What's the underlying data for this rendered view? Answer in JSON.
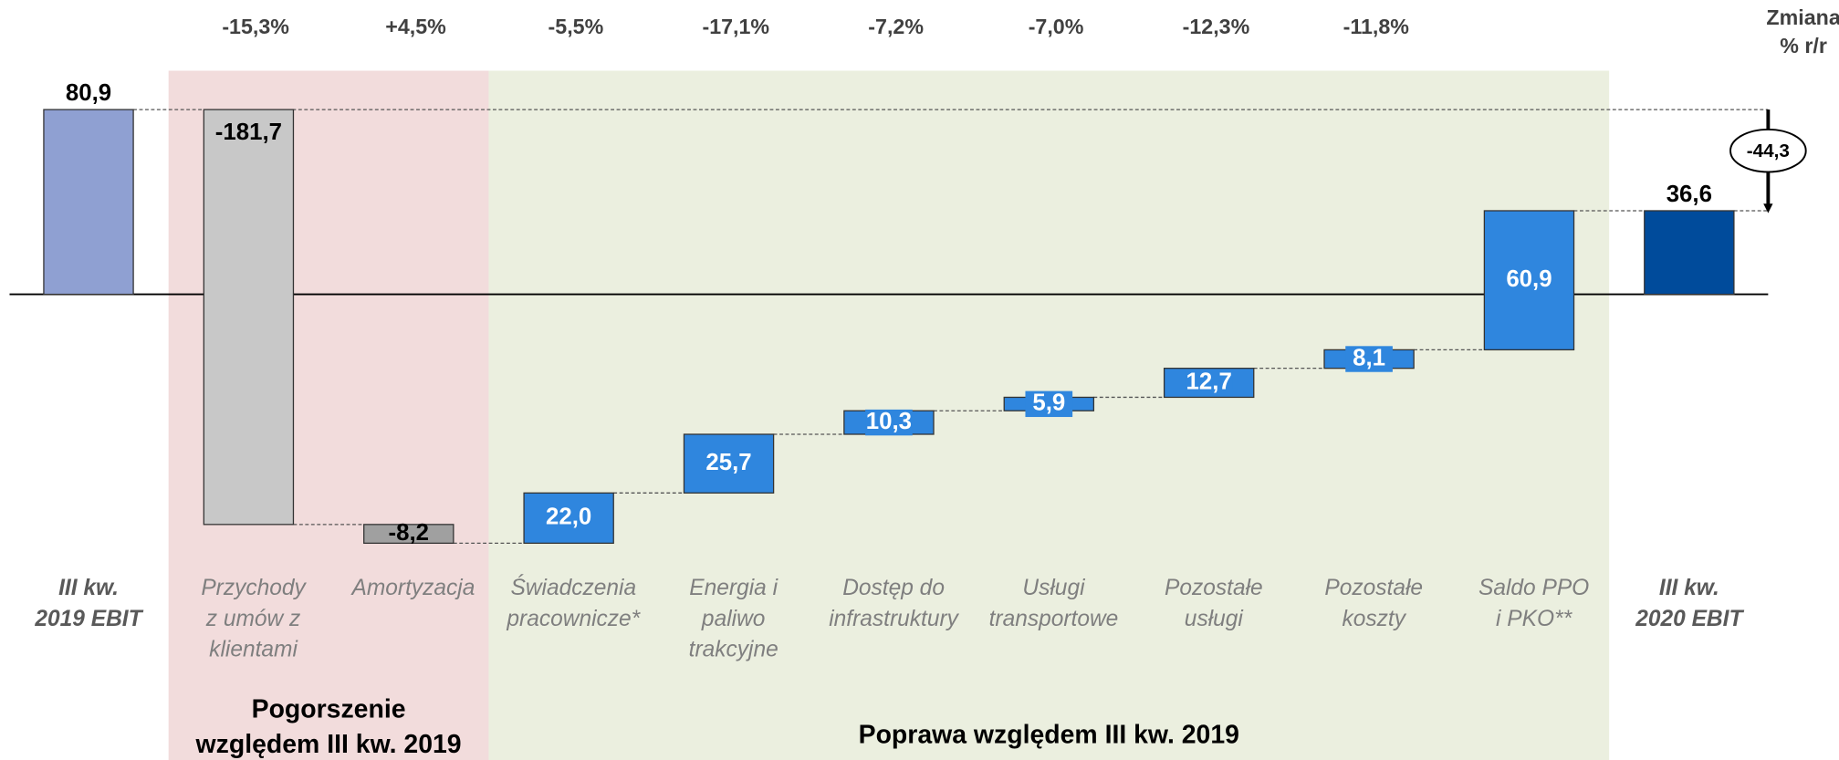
{
  "chart_data": {
    "type": "waterfall",
    "categories": [
      [
        "III kw.",
        "2019 EBIT"
      ],
      [
        "Przychody",
        "z umów z",
        "klientami"
      ],
      [
        "Amortyzacja"
      ],
      [
        "Świadczenia",
        "pracownicze*"
      ],
      [
        "Energia i",
        "paliwo",
        "trakcyjne"
      ],
      [
        "Dostęp do",
        "infrastruktury"
      ],
      [
        "Usługi",
        "transportowe"
      ],
      [
        "Pozostałe",
        "usługi"
      ],
      [
        "Pozostałe",
        "koszty"
      ],
      [
        "Saldo PPO",
        "i PKO**"
      ],
      [
        "III kw.",
        "2020 EBIT"
      ]
    ],
    "values": [
      80.9,
      -181.7,
      -8.2,
      22.0,
      25.7,
      10.3,
      5.9,
      12.7,
      8.1,
      60.9,
      36.6
    ],
    "value_labels": [
      "80,9",
      "-181,7",
      "-8,2",
      "22,0",
      "25,7",
      "10,3",
      "5,9",
      "12,7",
      "8,1",
      "60,9",
      "36,6"
    ],
    "is_total": [
      true,
      false,
      false,
      false,
      false,
      false,
      false,
      false,
      false,
      false,
      true
    ],
    "colors": [
      "#8fa0d2",
      "#c8c8c8",
      "#a0a0a0",
      "#2f86de",
      "#2f86de",
      "#2f86de",
      "#2f86de",
      "#2f86de",
      "#2f86de",
      "#2f86de",
      "#004b9b"
    ],
    "changes_header": [
      "Zmiana",
      "% r/r"
    ],
    "changes": [
      null,
      "-15,3%",
      "+4,5%",
      "-5,5%",
      "-17,1%",
      "-7,2%",
      "-7,0%",
      "-12,3%",
      "-11,8%",
      null,
      null
    ],
    "net_change": {
      "value": -44.3,
      "label": "-44,3"
    },
    "sections": [
      {
        "label": [
          "Pogorszenie",
          "względem III kw. 2019"
        ],
        "color": "#f2dcdc"
      },
      {
        "label": [
          "Poprawa względem III kw. 2019"
        ],
        "color": "#ebefdf"
      }
    ]
  }
}
